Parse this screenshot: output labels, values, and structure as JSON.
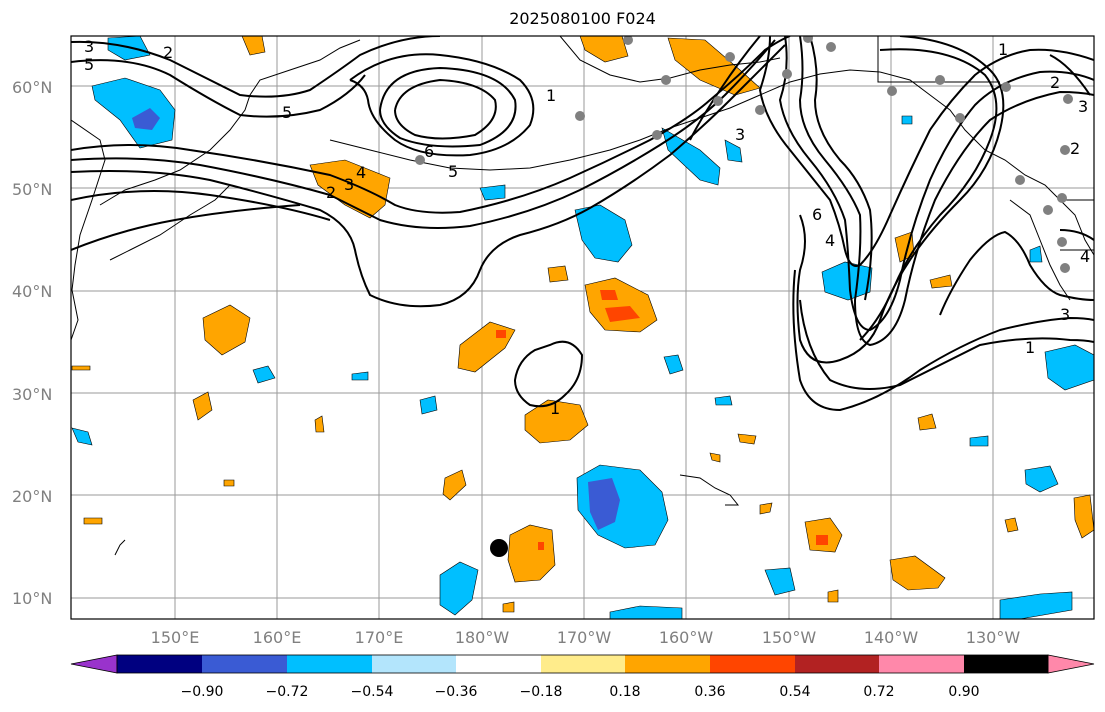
{
  "title": "2025080100 F024",
  "lat_labels": [
    "60°N",
    "50°N",
    "40°N",
    "30°N",
    "20°N",
    "10°N"
  ],
  "lon_labels": [
    "150°E",
    "160°E",
    "170°E",
    "180°W",
    "170°W",
    "160°W",
    "150°W",
    "140°W",
    "130°W"
  ],
  "contour_labels": [
    "3",
    "5",
    "2",
    "6",
    "5",
    "4",
    "3",
    "2",
    "5",
    "1",
    "1",
    "6",
    "4",
    "3",
    "1",
    "3",
    "1",
    "2",
    "2",
    "4",
    "3"
  ],
  "colorbar": {
    "ticks": [
      "−0.90",
      "−0.72",
      "−0.54",
      "−0.36",
      "−0.18",
      "0.18",
      "0.36",
      "0.54",
      "0.72",
      "0.90"
    ],
    "colors": [
      "#9933cc",
      "#000080",
      "#3a5bd4",
      "#00bfff",
      "#b3e5fc",
      "#ffffff",
      "#ffec8b",
      "#ffa500",
      "#ff4500",
      "#b22222",
      "#ff88aa"
    ]
  },
  "colors": {
    "neg_strong": "#3a5bd4",
    "neg": "#00bfff",
    "neg_weak": "#b3e5fc",
    "pos_weak": "#ffec8b",
    "pos": "#ffa500",
    "pos_strong": "#ff4500",
    "station_dot": "#808080",
    "marker": "#000000"
  }
}
